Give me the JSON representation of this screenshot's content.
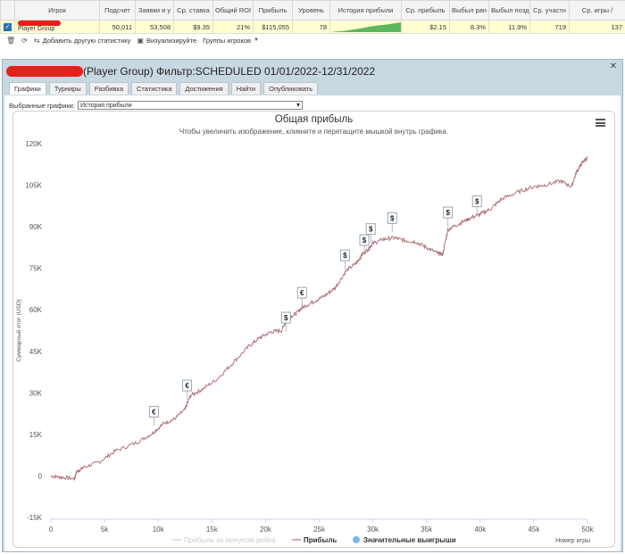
{
  "table": {
    "headers": [
      "",
      "Игрок",
      "Подсчет",
      "Заявки и у",
      "Ср. ставка",
      "Общий ROI",
      "Прибыль",
      "Уровень",
      "История прибыли",
      "Ср. прибыль",
      "Выбыл ран",
      "Выбыл позд",
      "Ср. участн",
      "Ср. игры /"
    ],
    "row": {
      "player": "Player Group",
      "count": "50,011",
      "entries": "53,508",
      "avg_stake": "$9.35",
      "roi": "21%",
      "profit": "$115,055",
      "level": "78",
      "avg_profit": "$2.15",
      "early_out": "8.3%",
      "late_out": "11.9%",
      "avg_field": "719",
      "avg_games": "137"
    }
  },
  "toolbar": {
    "add_stat": "Добавить другую статистику",
    "visualize": "Визуализируйте",
    "groups": "Группы игроков"
  },
  "panel": {
    "title": "(Player Group) Фильтр:SCHEDULED 01/01/2022-12/31/2022",
    "tabs": [
      "Графики",
      "Турниры",
      "Разбивка",
      "Статистика",
      "Достижения",
      "Найти",
      "Опубликовать"
    ],
    "active_tab": 0,
    "select_label": "Выбранные графики:",
    "select_value": "История прибыли"
  },
  "chart_data": {
    "type": "line",
    "title": "Общая прибыль",
    "subtitle": "Чтобы увеличить изображение, кликните и перетащите мышкой внутрь графика.",
    "ylabel": "Суммарный итог (USD)",
    "xlabel": "Номер игры",
    "xlim": [
      0,
      50000
    ],
    "ylim": [
      -15000,
      120000
    ],
    "x_ticks": [
      "0",
      "5k",
      "10k",
      "15k",
      "20k",
      "25k",
      "30k",
      "35k",
      "40k",
      "45k",
      "50k"
    ],
    "y_ticks": [
      "-15K",
      "0",
      "15K",
      "30K",
      "45K",
      "60K",
      "75K",
      "90K",
      "105K",
      "120K"
    ],
    "legend": [
      "Прибыль за минусом рейка",
      "Прибыль",
      "Значительные выигрыши"
    ],
    "series": [
      {
        "name": "Прибыль",
        "color": "#b07478",
        "x": [
          0,
          1000,
          2200,
          2400,
          3000,
          4500,
          6000,
          8000,
          9500,
          10500,
          11500,
          12500,
          13000,
          14000,
          15500,
          17000,
          18500,
          19500,
          20500,
          21500,
          22000,
          22800,
          23500,
          24500,
          25500,
          26500,
          27500,
          28500,
          29000,
          29600,
          30000,
          31000,
          32000,
          33000,
          34000,
          35000,
          36000,
          36500,
          37000,
          38000,
          39000,
          40000,
          41000,
          42000,
          43500,
          45000,
          46000,
          47500,
          48500,
          49000,
          49500,
          50000
        ],
        "y": [
          0,
          -500,
          -1000,
          1500,
          3000,
          5000,
          9000,
          12000,
          15500,
          19000,
          20500,
          24000,
          29000,
          31000,
          35000,
          41000,
          47000,
          50000,
          52000,
          52500,
          57000,
          58500,
          61000,
          63000,
          65000,
          68000,
          74000,
          77000,
          80000,
          82000,
          84000,
          85500,
          86000,
          85000,
          84500,
          82500,
          80500,
          80000,
          89000,
          91000,
          93000,
          94500,
          96500,
          100000,
          102500,
          104500,
          105000,
          106500,
          104500,
          110000,
          113000,
          115000
        ]
      }
    ],
    "big_wins": [
      {
        "x": 9600,
        "y": 18000,
        "label": "€"
      },
      {
        "x": 12700,
        "y": 27500,
        "label": "€"
      },
      {
        "x": 21900,
        "y": 52000,
        "label": "$"
      },
      {
        "x": 23400,
        "y": 61000,
        "label": "€"
      },
      {
        "x": 27400,
        "y": 74500,
        "label": "$"
      },
      {
        "x": 29200,
        "y": 80000,
        "label": "$"
      },
      {
        "x": 29800,
        "y": 84000,
        "label": "$"
      },
      {
        "x": 31800,
        "y": 88000,
        "label": "$"
      },
      {
        "x": 37000,
        "y": 90000,
        "label": "$"
      },
      {
        "x": 39700,
        "y": 94000,
        "label": "$"
      }
    ]
  },
  "colors": {
    "line": "#b07478",
    "legend_marker_wins": "#7cb5ec",
    "legend_faded": "#cccccc",
    "mini_history": "#5cb85c"
  }
}
